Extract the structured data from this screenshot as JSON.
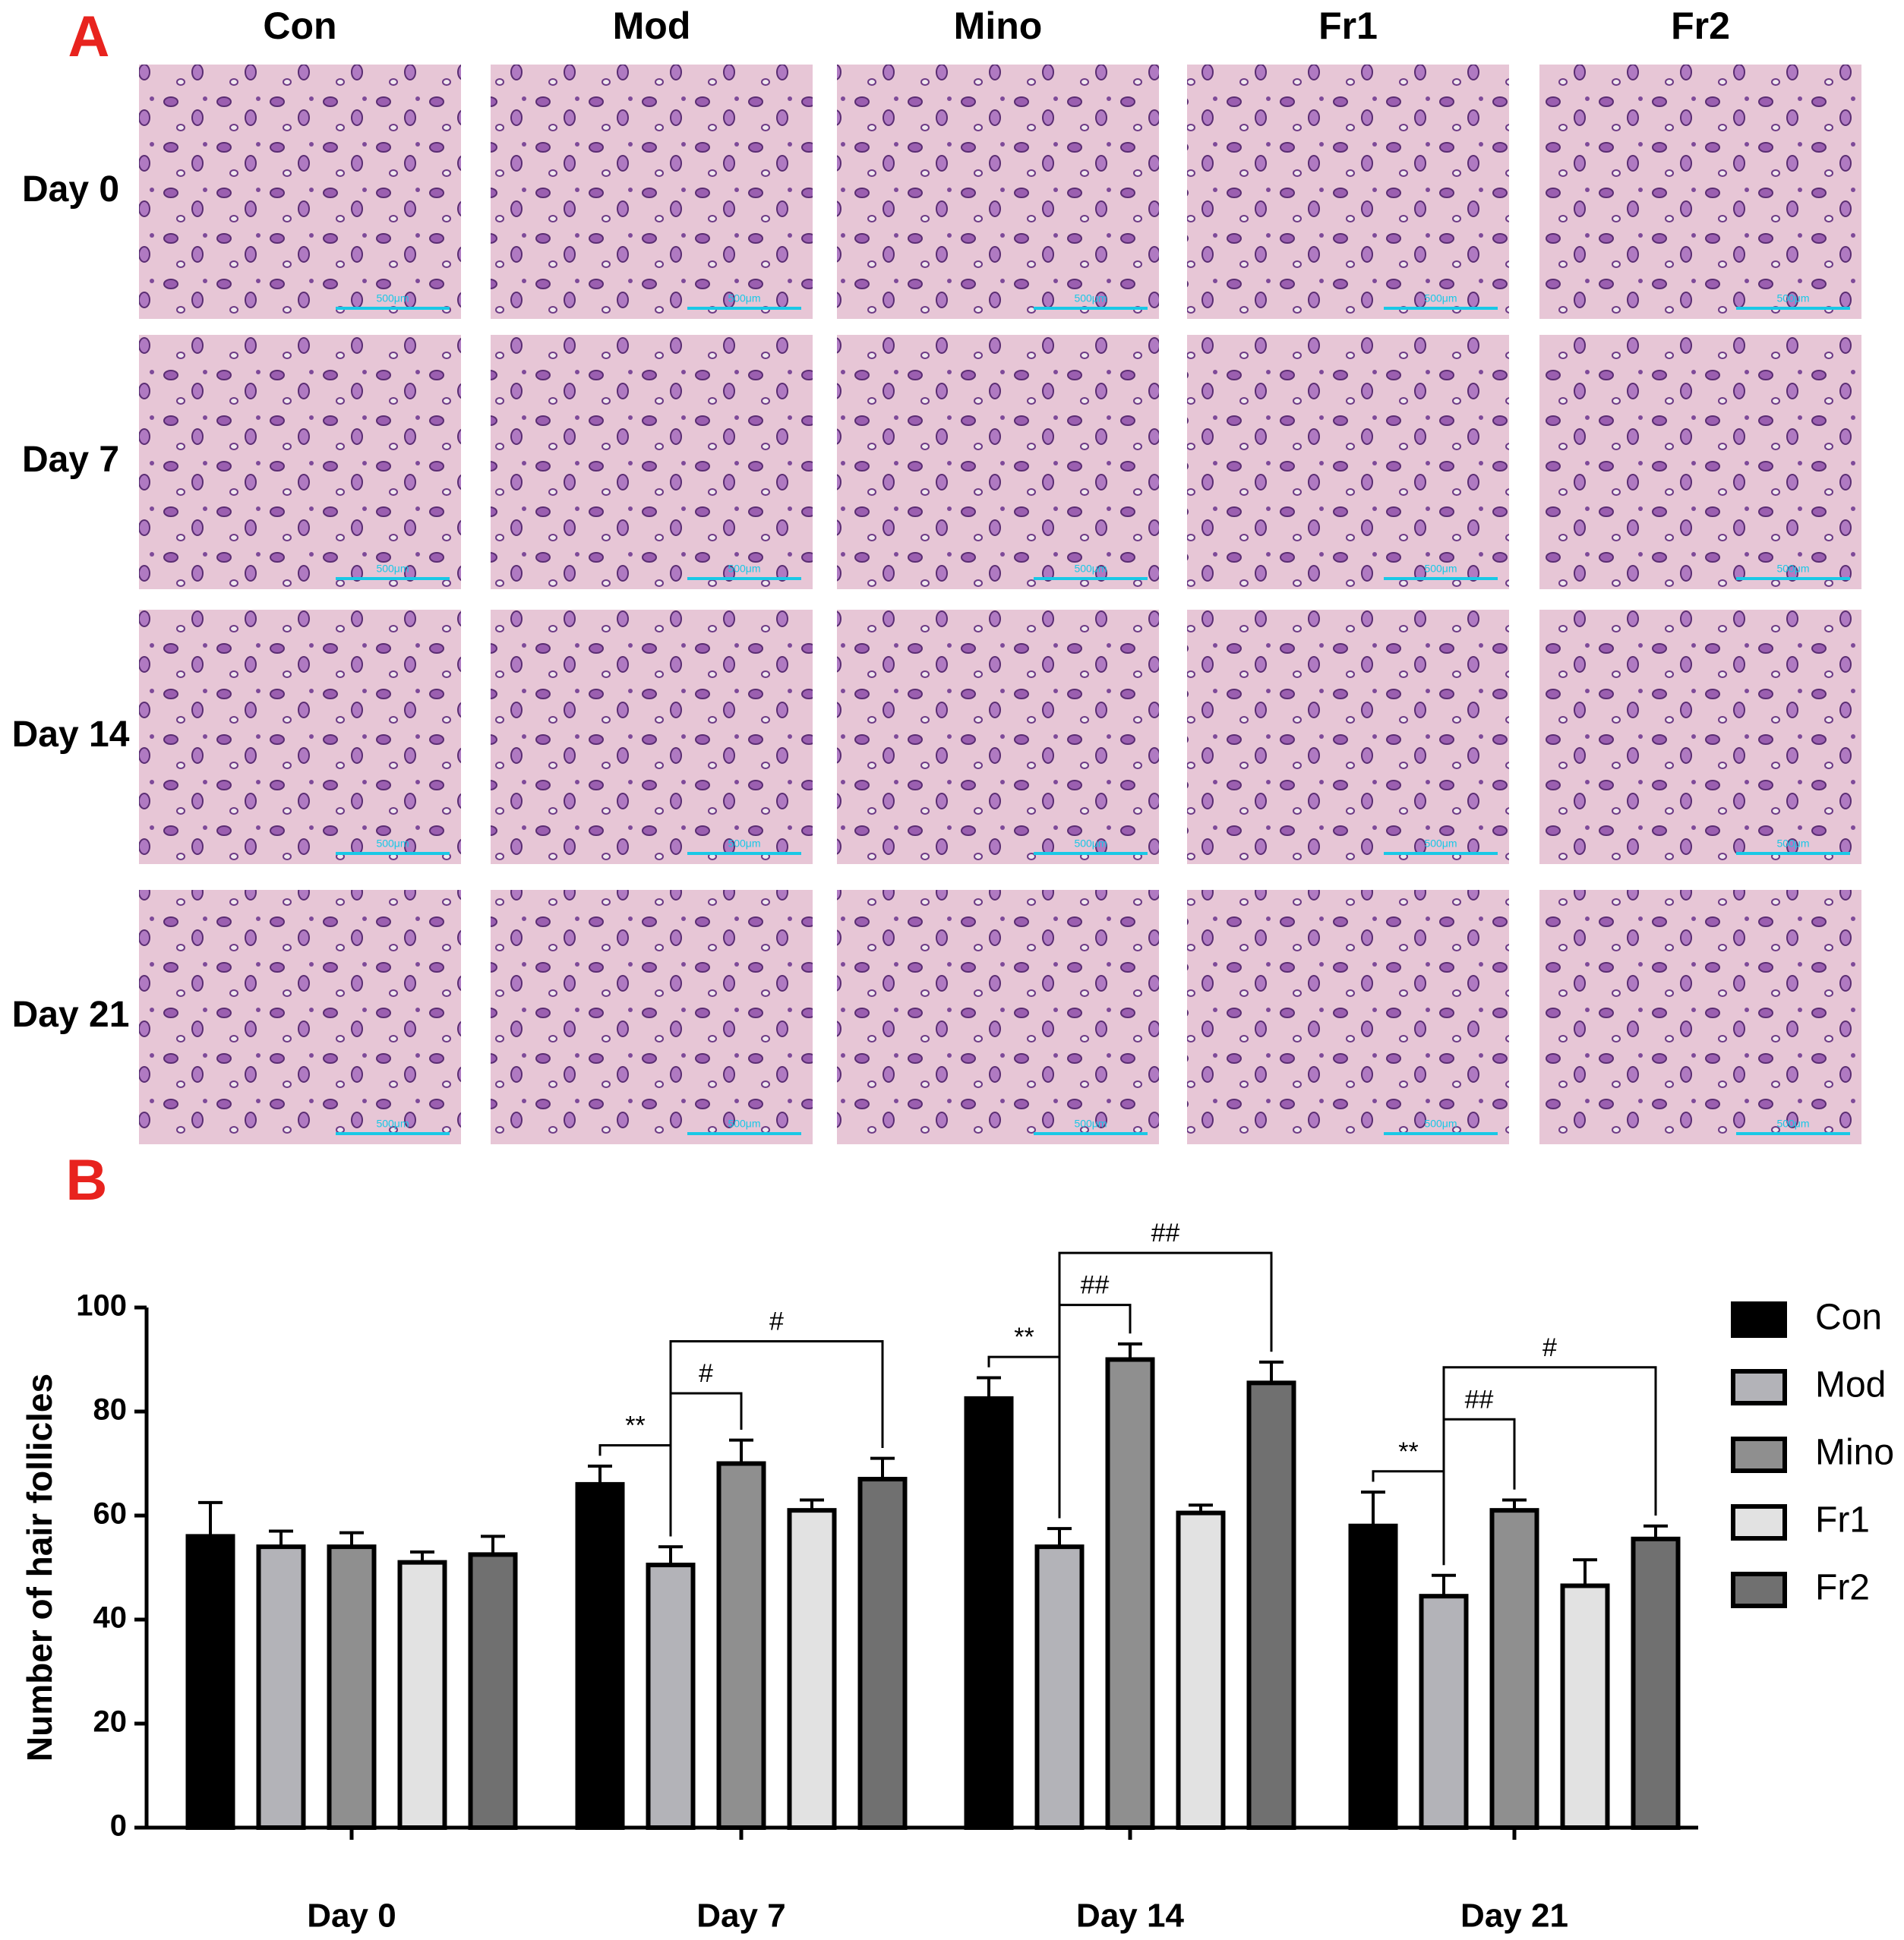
{
  "panel_a": {
    "label": "A",
    "columns": [
      "Con",
      "Mod",
      "Mino",
      "Fr1",
      "Fr2"
    ],
    "rows": [
      "Day 0",
      "Day 7",
      "Day 14",
      "Day 21"
    ],
    "scale_label": "500μm"
  },
  "panel_b": {
    "label": "B"
  },
  "chart_data": {
    "type": "bar",
    "y_label": "Number of hair follicles",
    "categories": [
      "Day 0",
      "Day 7",
      "Day 14",
      "Day 21"
    ],
    "series": [
      {
        "name": "Con",
        "color": "#000000",
        "values": [
          56,
          66,
          82.5,
          58
        ],
        "errors": [
          6.5,
          3.5,
          4,
          6.5
        ]
      },
      {
        "name": "Mod",
        "color": "#b3b3b8",
        "values": [
          54,
          50.5,
          54,
          44.5
        ],
        "errors": [
          3,
          3.5,
          3.5,
          4
        ]
      },
      {
        "name": "Mino",
        "color": "#8f8f8f",
        "values": [
          54,
          70,
          90,
          61
        ],
        "errors": [
          2.7,
          4.5,
          3,
          2
        ]
      },
      {
        "name": "Fr1",
        "color": "#e2e2e2",
        "values": [
          51,
          61,
          60.5,
          46.5
        ],
        "errors": [
          2,
          2,
          1.5,
          5
        ]
      },
      {
        "name": "Fr2",
        "color": "#707070",
        "values": [
          52.5,
          67,
          85.5,
          55.5
        ],
        "errors": [
          3.5,
          4,
          4,
          2.5
        ]
      }
    ],
    "ylim": [
      0,
      100
    ],
    "yticks": [
      0,
      20,
      40,
      60,
      80,
      100
    ],
    "annotations": [
      {
        "group": 1,
        "from": 0,
        "to": 1,
        "label": "**"
      },
      {
        "group": 1,
        "from": 1,
        "to": 2,
        "label": "#"
      },
      {
        "group": 1,
        "from": 1,
        "to": 4,
        "label": "#"
      },
      {
        "group": 2,
        "from": 0,
        "to": 1,
        "label": "**"
      },
      {
        "group": 2,
        "from": 1,
        "to": 2,
        "label": "##"
      },
      {
        "group": 2,
        "from": 1,
        "to": 4,
        "label": "##"
      },
      {
        "group": 3,
        "from": 0,
        "to": 1,
        "label": "**"
      },
      {
        "group": 3,
        "from": 1,
        "to": 2,
        "label": "##"
      },
      {
        "group": 3,
        "from": 1,
        "to": 4,
        "label": "#"
      }
    ],
    "legend": "right"
  }
}
